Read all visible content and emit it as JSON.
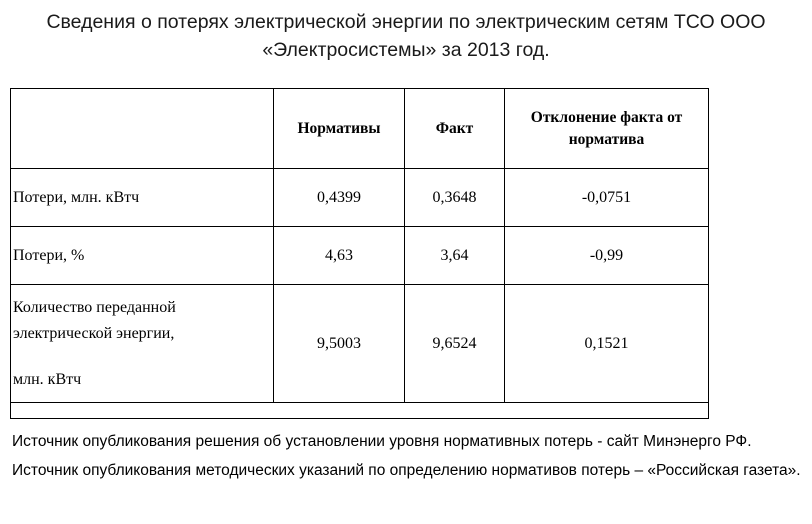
{
  "title": {
    "line1": "Сведения о потерях электрической энергии по электрическим сетям ТСО ООО",
    "line2": "«Электросистемы» за 2013 год."
  },
  "table": {
    "headers": [
      "",
      "Нормативы",
      "Факт",
      "Отклонение факта от норматива"
    ],
    "rows": [
      {
        "label": "Потери, млн. кВтч",
        "norm": "0,4399",
        "fact": "0,3648",
        "deviation": "-0,0751"
      },
      {
        "label": "Потери, %",
        "norm": "4,63",
        "fact": "3,64",
        "deviation": "-0,99"
      },
      {
        "label_lines": [
          "Количество переданной",
          "электрической энергии,",
          "млн. кВтч"
        ],
        "norm": "9,5003",
        "fact": "9,6524",
        "deviation": "0,1521"
      }
    ]
  },
  "notes": [
    "Источник опубликования решения об установлении уровня нормативных потерь - сайт Минэнерго РФ.",
    "Источник опубликования методических указаний по определению нормативов потерь – «Российская газета»."
  ]
}
